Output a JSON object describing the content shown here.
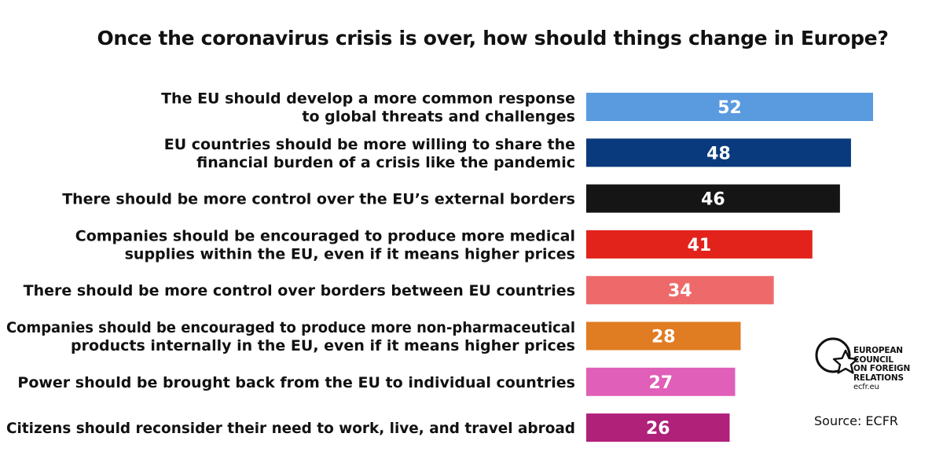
{
  "chart_data": {
    "type": "bar",
    "orientation": "horizontal",
    "title": "Once the coronavirus crisis is over, how should things change in Europe?",
    "categories": [
      [
        "The EU should develop a more common response",
        "to global threats and challenges"
      ],
      [
        "EU countries should be more willing to share the",
        "financial burden of a crisis like the pandemic"
      ],
      [
        "There should be more control over the EU’s external borders"
      ],
      [
        "Companies should be encouraged to produce more medical",
        "supplies within the EU, even if it means higher prices"
      ],
      [
        "There should be more control over borders between EU countries"
      ],
      [
        "Companies should be encouraged to produce more non-pharmaceutical",
        "products internally in the EU, even if it means higher prices"
      ],
      [
        "Power should be brought back from the EU to individual countries"
      ],
      [
        "Citizens should reconsider their need to work, live, and travel abroad"
      ]
    ],
    "values": [
      52,
      48,
      46,
      41,
      34,
      28,
      27,
      26
    ],
    "value_labels": [
      "52",
      "48",
      "46",
      "41",
      "34",
      "28",
      "27",
      "26"
    ],
    "colors": [
      "#5a9be0",
      "#0a3a7e",
      "#151515",
      "#e2231c",
      "#ee6a6a",
      "#e07c22",
      "#e05fb8",
      "#b0217a"
    ],
    "xlabel": "",
    "ylabel": "",
    "xlim": [
      0,
      52
    ],
    "grid": false,
    "legend": "none"
  },
  "logo": {
    "icon": "ecfr-star-circle-icon",
    "lines": [
      "EUROPEAN",
      "COUNCIL",
      "ON FOREIGN",
      "RELATIONS"
    ],
    "url": "ecfr.eu"
  },
  "source": "Source: ECFR"
}
